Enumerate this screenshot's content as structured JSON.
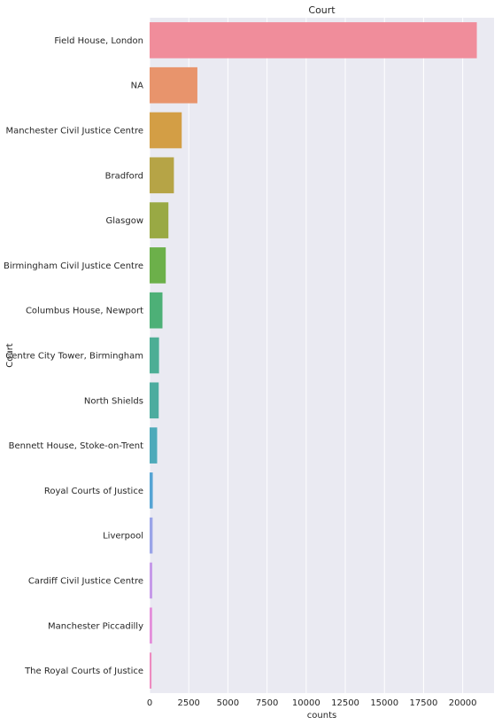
{
  "chart_data": {
    "type": "bar",
    "orientation": "horizontal",
    "title": "Court",
    "xlabel": "counts",
    "ylabel": "Court",
    "xlim": [
      0,
      22000
    ],
    "xticks": [
      0,
      2500,
      5000,
      7500,
      10000,
      12500,
      15000,
      17500,
      20000
    ],
    "grid": true,
    "categories": [
      "Field House, London",
      "NA",
      "Manchester Civil Justice Centre",
      "Bradford",
      "Glasgow",
      "Birmingham Civil Justice Centre",
      "Columbus House, Newport",
      "Centre City Tower, Birmingham",
      "North Shields",
      "Bennett House, Stoke-on-Trent",
      "Royal Courts of Justice",
      "Liverpool",
      "Cardiff Civil Justice Centre",
      "Manchester Piccadilly",
      "The Royal Courts of Justice"
    ],
    "values": [
      20900,
      3050,
      2050,
      1550,
      1200,
      1030,
      820,
      600,
      580,
      480,
      200,
      190,
      170,
      160,
      120
    ],
    "colors": [
      "#f08d9b",
      "#e8946c",
      "#d39e45",
      "#b6a446",
      "#99a944",
      "#6cb04a",
      "#4db077",
      "#4cae95",
      "#4cac9f",
      "#4eaaba",
      "#55a4d4",
      "#9aa4e8",
      "#c69ae9",
      "#e48edb",
      "#ee8bc0"
    ],
    "background": "#eaeaf2",
    "grid_color": "#ffffff"
  }
}
